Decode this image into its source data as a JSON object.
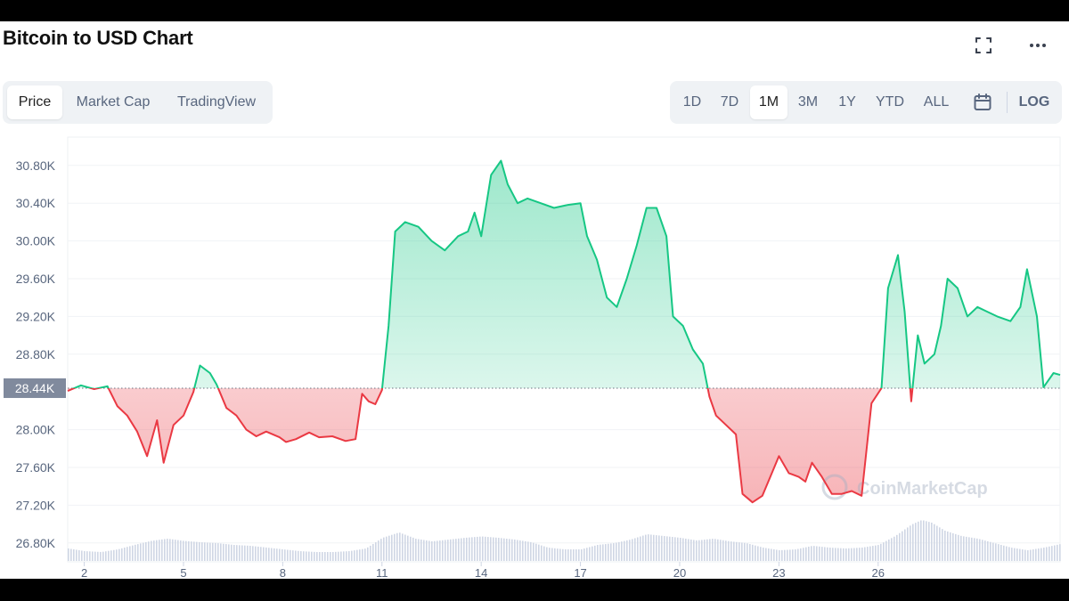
{
  "title": "Bitcoin to USD Chart",
  "view_tabs": [
    {
      "label": "Price",
      "active": true
    },
    {
      "label": "Market Cap",
      "active": false
    },
    {
      "label": "TradingView",
      "active": false
    }
  ],
  "range_tabs": [
    {
      "label": "1D",
      "active": false
    },
    {
      "label": "7D",
      "active": false
    },
    {
      "label": "1M",
      "active": true
    },
    {
      "label": "3M",
      "active": false
    },
    {
      "label": "1Y",
      "active": false
    },
    {
      "label": "YTD",
      "active": false
    },
    {
      "label": "ALL",
      "active": false
    }
  ],
  "log_label": "LOG",
  "icons": {
    "expand": "fullscreen-icon",
    "more": "more-horizontal-icon",
    "calendar": "calendar-icon"
  },
  "watermark": "CoinMarketCap",
  "colors": {
    "up": "#16c784",
    "down": "#ea3943",
    "baseline_label_bg": "#808a9d",
    "volume": "#cfd6e4"
  },
  "chart_data": {
    "type": "area",
    "x_ticks": [
      "2",
      "5",
      "8",
      "11",
      "14",
      "17",
      "20",
      "23",
      "26"
    ],
    "y_ticks": [
      "30.80K",
      "30.40K",
      "30.00K",
      "29.60K",
      "29.20K",
      "28.80K",
      "28.00K",
      "27.60K",
      "27.20K",
      "26.80K"
    ],
    "y_tick_values": [
      30800,
      30400,
      30000,
      29600,
      29200,
      28800,
      28000,
      27600,
      27200,
      26800
    ],
    "ylim": [
      26600,
      31100
    ],
    "x_range": [
      1.5,
      31.5
    ],
    "baseline": {
      "value": 28440,
      "label": "28.44K"
    },
    "price": [
      [
        1.5,
        28410
      ],
      [
        1.9,
        28470
      ],
      [
        2.3,
        28430
      ],
      [
        2.7,
        28460
      ],
      [
        3.0,
        28250
      ],
      [
        3.3,
        28150
      ],
      [
        3.6,
        27980
      ],
      [
        3.9,
        27720
      ],
      [
        4.2,
        28100
      ],
      [
        4.4,
        27650
      ],
      [
        4.7,
        28050
      ],
      [
        5.0,
        28150
      ],
      [
        5.3,
        28400
      ],
      [
        5.5,
        28680
      ],
      [
        5.8,
        28600
      ],
      [
        6.0,
        28480
      ],
      [
        6.3,
        28230
      ],
      [
        6.6,
        28150
      ],
      [
        6.9,
        28000
      ],
      [
        7.2,
        27930
      ],
      [
        7.5,
        27980
      ],
      [
        7.9,
        27920
      ],
      [
        8.1,
        27870
      ],
      [
        8.4,
        27900
      ],
      [
        8.8,
        27970
      ],
      [
        9.1,
        27920
      ],
      [
        9.5,
        27930
      ],
      [
        9.9,
        27880
      ],
      [
        10.2,
        27900
      ],
      [
        10.4,
        28380
      ],
      [
        10.6,
        28300
      ],
      [
        10.8,
        28270
      ],
      [
        11.0,
        28420
      ],
      [
        11.2,
        29100
      ],
      [
        11.4,
        30100
      ],
      [
        11.7,
        30200
      ],
      [
        12.1,
        30150
      ],
      [
        12.5,
        30000
      ],
      [
        12.9,
        29900
      ],
      [
        13.3,
        30050
      ],
      [
        13.6,
        30100
      ],
      [
        13.8,
        30300
      ],
      [
        14.0,
        30050
      ],
      [
        14.3,
        30700
      ],
      [
        14.6,
        30850
      ],
      [
        14.8,
        30600
      ],
      [
        15.1,
        30400
      ],
      [
        15.4,
        30450
      ],
      [
        15.8,
        30400
      ],
      [
        16.2,
        30350
      ],
      [
        16.6,
        30380
      ],
      [
        17.0,
        30400
      ],
      [
        17.2,
        30050
      ],
      [
        17.5,
        29800
      ],
      [
        17.8,
        29400
      ],
      [
        18.1,
        29300
      ],
      [
        18.4,
        29600
      ],
      [
        18.7,
        29950
      ],
      [
        19.0,
        30350
      ],
      [
        19.3,
        30350
      ],
      [
        19.6,
        30050
      ],
      [
        19.8,
        29200
      ],
      [
        20.1,
        29100
      ],
      [
        20.4,
        28850
      ],
      [
        20.7,
        28700
      ],
      [
        20.9,
        28350
      ],
      [
        21.1,
        28150
      ],
      [
        21.4,
        28050
      ],
      [
        21.7,
        27950
      ],
      [
        21.9,
        27320
      ],
      [
        22.2,
        27230
      ],
      [
        22.5,
        27300
      ],
      [
        22.8,
        27550
      ],
      [
        23.0,
        27720
      ],
      [
        23.3,
        27540
      ],
      [
        23.6,
        27500
      ],
      [
        23.8,
        27450
      ],
      [
        24.0,
        27650
      ],
      [
        24.3,
        27500
      ],
      [
        24.6,
        27320
      ],
      [
        24.9,
        27320
      ],
      [
        25.2,
        27350
      ],
      [
        25.5,
        27300
      ],
      [
        25.8,
        28280
      ],
      [
        26.1,
        28440
      ],
      [
        26.3,
        29500
      ],
      [
        26.6,
        29850
      ],
      [
        26.8,
        29250
      ],
      [
        27.0,
        28300
      ],
      [
        27.2,
        29000
      ],
      [
        27.4,
        28700
      ],
      [
        27.7,
        28800
      ],
      [
        27.9,
        29100
      ],
      [
        28.1,
        29600
      ],
      [
        28.4,
        29500
      ],
      [
        28.7,
        29200
      ],
      [
        29.0,
        29300
      ],
      [
        29.3,
        29250
      ],
      [
        29.6,
        29200
      ],
      [
        30.0,
        29150
      ],
      [
        30.3,
        29300
      ],
      [
        30.5,
        29700
      ],
      [
        30.8,
        29200
      ],
      [
        31.0,
        28450
      ],
      [
        31.3,
        28600
      ],
      [
        31.5,
        28580
      ]
    ],
    "volume_relative": [
      [
        1.5,
        0.28
      ],
      [
        2.0,
        0.22
      ],
      [
        2.5,
        0.2
      ],
      [
        3.0,
        0.26
      ],
      [
        3.5,
        0.36
      ],
      [
        4.0,
        0.45
      ],
      [
        4.5,
        0.5
      ],
      [
        5.0,
        0.45
      ],
      [
        5.5,
        0.42
      ],
      [
        6.0,
        0.4
      ],
      [
        6.5,
        0.36
      ],
      [
        7.0,
        0.34
      ],
      [
        7.5,
        0.3
      ],
      [
        8.0,
        0.26
      ],
      [
        8.5,
        0.22
      ],
      [
        9.0,
        0.2
      ],
      [
        9.5,
        0.2
      ],
      [
        10.0,
        0.22
      ],
      [
        10.5,
        0.28
      ],
      [
        11.0,
        0.52
      ],
      [
        11.5,
        0.64
      ],
      [
        12.0,
        0.5
      ],
      [
        12.5,
        0.44
      ],
      [
        13.0,
        0.48
      ],
      [
        13.5,
        0.52
      ],
      [
        14.0,
        0.55
      ],
      [
        14.5,
        0.52
      ],
      [
        15.0,
        0.48
      ],
      [
        15.5,
        0.42
      ],
      [
        16.0,
        0.3
      ],
      [
        16.5,
        0.26
      ],
      [
        17.0,
        0.26
      ],
      [
        17.5,
        0.36
      ],
      [
        18.0,
        0.4
      ],
      [
        18.5,
        0.48
      ],
      [
        19.0,
        0.6
      ],
      [
        19.5,
        0.56
      ],
      [
        20.0,
        0.52
      ],
      [
        20.5,
        0.46
      ],
      [
        21.0,
        0.5
      ],
      [
        21.5,
        0.44
      ],
      [
        22.0,
        0.4
      ],
      [
        22.5,
        0.3
      ],
      [
        23.0,
        0.24
      ],
      [
        23.5,
        0.26
      ],
      [
        24.0,
        0.34
      ],
      [
        24.5,
        0.3
      ],
      [
        25.0,
        0.28
      ],
      [
        25.5,
        0.3
      ],
      [
        26.0,
        0.36
      ],
      [
        26.5,
        0.56
      ],
      [
        27.0,
        0.82
      ],
      [
        27.3,
        0.92
      ],
      [
        27.6,
        0.86
      ],
      [
        28.0,
        0.68
      ],
      [
        28.5,
        0.56
      ],
      [
        29.0,
        0.5
      ],
      [
        29.5,
        0.4
      ],
      [
        30.0,
        0.3
      ],
      [
        30.5,
        0.24
      ],
      [
        31.0,
        0.3
      ],
      [
        31.5,
        0.38
      ]
    ]
  }
}
